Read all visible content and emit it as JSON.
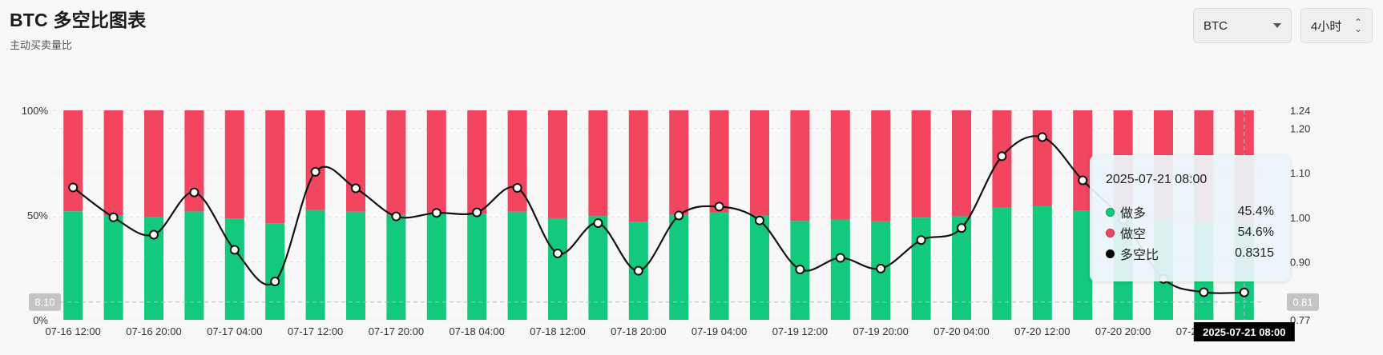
{
  "header": {
    "title": "BTC 多空比图表",
    "subtitle": "主动买卖量比"
  },
  "controls": {
    "coin": "BTC",
    "interval": "4小时"
  },
  "colors": {
    "long": "#13c97d",
    "short": "#f2455f",
    "ratio_line": "#111111"
  },
  "chart_data": {
    "type": "bar",
    "title": "",
    "x": [
      "07-16 12:00",
      "07-16 16:00",
      "07-16 20:00",
      "07-17 00:00",
      "07-17 04:00",
      "07-17 08:00",
      "07-17 12:00",
      "07-17 16:00",
      "07-17 20:00",
      "07-18 00:00",
      "07-18 04:00",
      "07-18 08:00",
      "07-18 12:00",
      "07-18 16:00",
      "07-18 20:00",
      "07-19 00:00",
      "07-19 04:00",
      "07-19 08:00",
      "07-19 12:00",
      "07-19 16:00",
      "07-19 20:00",
      "07-20 00:00",
      "07-20 04:00",
      "07-20 08:00",
      "07-20 12:00",
      "07-20 16:00",
      "07-20 20:00",
      "07-21 00:00",
      "07-21 04:00",
      "07-21 08:00"
    ],
    "x_tick_labels": [
      "07-16 12:00",
      "07-16 20:00",
      "07-17 04:00",
      "07-17 12:00",
      "07-17 20:00",
      "07-18 04:00",
      "07-18 12:00",
      "07-18 20:00",
      "07-19 04:00",
      "07-19 12:00",
      "07-19 20:00",
      "07-20 04:00",
      "07-20 12:00",
      "07-20 20:00",
      "07-21 04:00"
    ],
    "series": [
      {
        "name": "做多",
        "axis": "left",
        "values": [
          51.8,
          50.0,
          49.0,
          51.7,
          48.2,
          46.1,
          52.4,
          51.6,
          50.1,
          50.4,
          50.5,
          51.6,
          48.5,
          49.5,
          46.9,
          50.2,
          51.1,
          49.8,
          47.2,
          47.9,
          47.0,
          48.8,
          49.4,
          53.6,
          54.4,
          52.0,
          50.5,
          48.0,
          46.4,
          45.4
        ]
      },
      {
        "name": "做空",
        "axis": "left",
        "values": [
          48.2,
          50.0,
          51.0,
          48.3,
          51.8,
          53.9,
          47.6,
          48.4,
          49.9,
          49.6,
          49.5,
          48.4,
          51.5,
          50.5,
          53.1,
          49.8,
          48.9,
          50.2,
          52.8,
          52.1,
          53.0,
          51.2,
          50.6,
          46.4,
          45.6,
          48.0,
          49.5,
          52.0,
          53.6,
          54.6
        ]
      },
      {
        "name": "多空比",
        "axis": "right",
        "type": "line",
        "values": [
          1.067,
          1.0,
          0.961,
          1.056,
          0.927,
          0.856,
          1.102,
          1.065,
          1.002,
          1.01,
          1.011,
          1.066,
          0.919,
          0.987,
          0.88,
          1.004,
          1.024,
          0.993,
          0.883,
          0.909,
          0.885,
          0.949,
          0.976,
          1.137,
          1.18,
          1.083,
          0.994,
          0.862,
          0.832,
          0.8315
        ]
      }
    ],
    "ylim_left": [
      0,
      100
    ],
    "ylim_right": [
      0.77,
      1.24
    ],
    "left_tick_labels": [
      "100%",
      "50%",
      "0%"
    ],
    "right_tick_labels": [
      "1.24",
      "1.20",
      "1.10",
      "1.00",
      "0.90",
      "0.77"
    ],
    "crosshair": {
      "left_label": "8.10",
      "right_label": "0.81",
      "x_label": "2025-07-21 08:00",
      "ratio_value": 0.81
    },
    "grid": true
  },
  "tooltip": {
    "time": "2025-07-21 08:00",
    "rows": [
      {
        "label": "做多",
        "value": "45.4%",
        "color": "#13c97d"
      },
      {
        "label": "做空",
        "value": "54.6%",
        "color": "#f2455f"
      },
      {
        "label": "多空比",
        "value": "0.8315",
        "color": "#000000"
      }
    ]
  }
}
